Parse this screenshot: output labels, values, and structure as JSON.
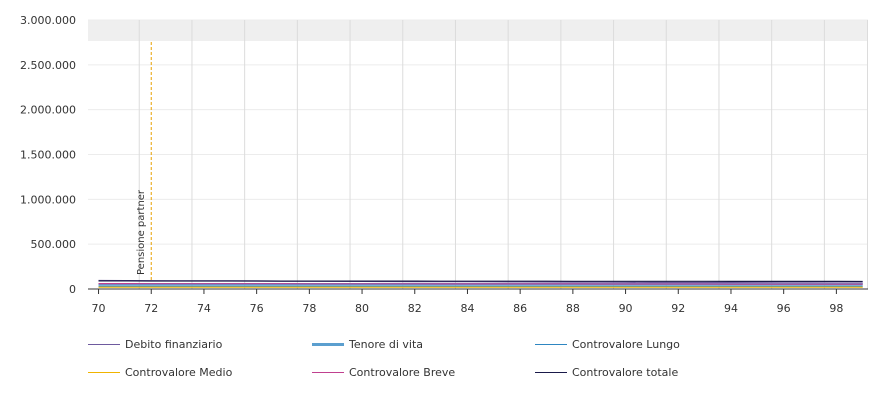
{
  "chart_data": {
    "type": "line",
    "title": "",
    "xlabel": "",
    "ylabel": "",
    "xlim": [
      69.6,
      99.2
    ],
    "ylim": [
      0,
      3000000
    ],
    "x_ticks": [
      "70",
      "72",
      "74",
      "76",
      "78",
      "80",
      "82",
      "84",
      "86",
      "88",
      "90",
      "92",
      "94",
      "96",
      "98"
    ],
    "y_ticks": [
      "3.000.000",
      "2.500.000",
      "2.000.000",
      "1.500.000",
      "1.000.000",
      "500.000",
      "0"
    ],
    "grid": true,
    "legend_position": "bottom",
    "annotation": {
      "x": 72,
      "label": "Pensione partner",
      "color": "#e8a100"
    },
    "x": [
      70,
      71,
      72,
      73,
      74,
      75,
      76,
      77,
      78,
      79,
      80,
      81,
      82,
      83,
      84,
      85,
      86,
      87,
      88,
      89,
      90,
      91,
      92,
      93,
      94,
      95,
      96,
      97,
      98,
      99
    ],
    "series": [
      {
        "name": "Debito finanziario",
        "color": "#6e5a9e",
        "values": [
          95000,
          94000,
          93000,
          92000,
          91000,
          90000,
          89000,
          88000,
          87000,
          86000,
          85000,
          84000,
          83000,
          82000,
          81000,
          80000,
          79000,
          78000,
          77000,
          76000,
          75000,
          74000,
          73000,
          72000,
          71000,
          70000,
          69000,
          68000,
          67000,
          66000
        ]
      },
      {
        "name": "Tenore di vita",
        "color": "#5b9fcf",
        "values": [
          52000,
          52000,
          52000,
          52000,
          52000,
          52000,
          52000,
          52000,
          52000,
          52000,
          52000,
          52000,
          52000,
          52000,
          52000,
          52000,
          52000,
          52000,
          52000,
          52000,
          52000,
          52000,
          52000,
          52000,
          52000,
          52000,
          52000,
          52000,
          52000,
          52000
        ]
      },
      {
        "name": "Controvalore Lungo",
        "color": "#2e86c1",
        "values": [
          30000,
          30000,
          30000,
          30000,
          30000,
          30000,
          30000,
          30000,
          30000,
          30000,
          30000,
          30000,
          30000,
          30000,
          30000,
          30000,
          30000,
          30000,
          30000,
          30000,
          30000,
          30000,
          30000,
          30000,
          30000,
          30000,
          30000,
          30000,
          30000,
          30000
        ]
      },
      {
        "name": "Controvalore Medio",
        "color": "#f0b400",
        "values": [
          20000,
          20000,
          20000,
          20000,
          20000,
          20000,
          20000,
          20000,
          20000,
          20000,
          20000,
          20000,
          20000,
          20000,
          20000,
          20000,
          20000,
          20000,
          20000,
          20000,
          20000,
          20000,
          20000,
          20000,
          20000,
          20000,
          20000,
          20000,
          20000,
          20000
        ]
      },
      {
        "name": "Controvalore Breve",
        "color": "#c0408f",
        "values": [
          60000,
          59800,
          59600,
          59400,
          59200,
          59000,
          58800,
          58600,
          58400,
          58200,
          58000,
          57800,
          57600,
          57400,
          57200,
          57000,
          56800,
          56600,
          56400,
          56200,
          56000,
          55800,
          55600,
          55400,
          55200,
          55000,
          54800,
          54600,
          54400,
          54200
        ]
      },
      {
        "name": "Controvalore totale",
        "color": "#1a1a4a",
        "values": [
          90000,
          89800,
          89600,
          89400,
          89200,
          89000,
          88800,
          88600,
          88400,
          88200,
          88000,
          87800,
          87600,
          87400,
          87200,
          87000,
          86800,
          86600,
          86400,
          86200,
          86000,
          85800,
          85600,
          85400,
          85200,
          85000,
          84800,
          84600,
          84400,
          84200
        ]
      }
    ]
  }
}
